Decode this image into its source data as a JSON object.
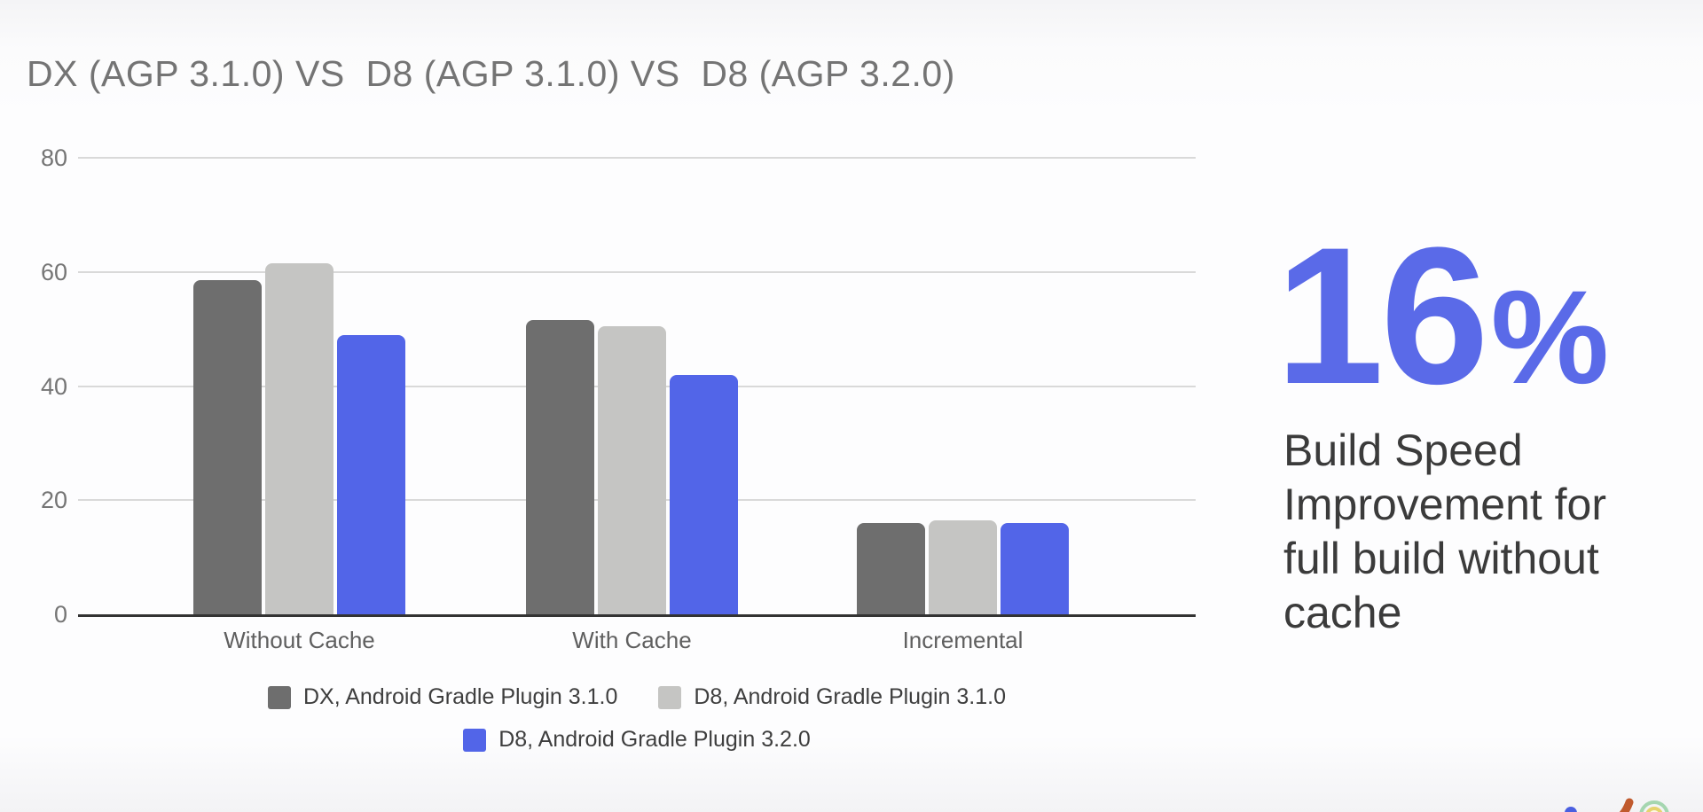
{
  "chart_data": {
    "type": "bar",
    "title": "DX (AGP 3.1.0) VS  D8 (AGP 3.1.0) VS  D8 (AGP 3.2.0)",
    "categories": [
      "Without Cache",
      "With Cache",
      "Incremental"
    ],
    "series": [
      {
        "name": "DX, Android Gradle Plugin 3.1.0",
        "color": "#6e6e6e",
        "values": [
          58.5,
          51.5,
          16
        ]
      },
      {
        "name": "D8, Android Gradle Plugin 3.1.0",
        "color": "#c5c5c3",
        "values": [
          61.5,
          50.5,
          16.5
        ]
      },
      {
        "name": "D8, Android Gradle Plugin 3.2.0",
        "color": "#5265e8",
        "values": [
          49,
          42,
          16
        ]
      }
    ],
    "xlabel": "",
    "ylabel": "",
    "ylim": [
      0,
      80
    ],
    "yticks": [
      0,
      20,
      40,
      60,
      80
    ],
    "grid": true,
    "legend_position": "bottom",
    "legend_rows": [
      [
        0,
        1
      ],
      [
        2
      ]
    ]
  },
  "callout": {
    "value": "16",
    "unit": "%",
    "caption": "Build Speed Improvement for full build without cache",
    "caption_lines": [
      "Build Speed",
      "Improvement for",
      "full build without",
      "cache"
    ],
    "accent_color": "#5a6ae8",
    "text_color": "#3b3b3b"
  },
  "decor": {
    "dot_color": "#4a5fe0",
    "squiggle_color": "#c05a2d",
    "ring_outer_color": "#a5d6b0",
    "ring_inner_color": "#e6d36e"
  }
}
